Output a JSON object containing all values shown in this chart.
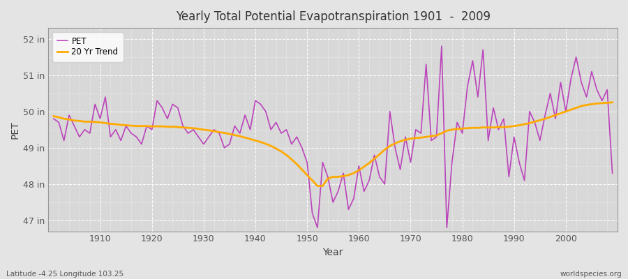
{
  "title": "Yearly Total Potential Evapotranspiration 1901  -  2009",
  "xlabel": "Year",
  "ylabel": "PET",
  "bottom_left_label": "Latitude -4.25 Longitude 103.25",
  "bottom_right_label": "worldspecies.org",
  "pet_color": "#bb44bb",
  "trend_color": "#ffaa00",
  "fig_bg_color": "#e4e4e4",
  "plot_bg_color": "#d8d8d8",
  "grid_color": "#ffffff",
  "ylim": [
    46.7,
    52.3
  ],
  "xlim": [
    1900,
    2010
  ],
  "yticks": [
    47,
    48,
    49,
    50,
    51,
    52
  ],
  "ytick_labels": [
    "47 in",
    "48 in",
    "49 in",
    "50 in",
    "51 in",
    "52 in"
  ],
  "xticks": [
    1910,
    1920,
    1930,
    1940,
    1950,
    1960,
    1970,
    1980,
    1990,
    2000
  ],
  "years": [
    1901,
    1902,
    1903,
    1904,
    1905,
    1906,
    1907,
    1908,
    1909,
    1910,
    1911,
    1912,
    1913,
    1914,
    1915,
    1916,
    1917,
    1918,
    1919,
    1920,
    1921,
    1922,
    1923,
    1924,
    1925,
    1926,
    1927,
    1928,
    1929,
    1930,
    1931,
    1932,
    1933,
    1934,
    1935,
    1936,
    1937,
    1938,
    1939,
    1940,
    1941,
    1942,
    1943,
    1944,
    1945,
    1946,
    1947,
    1948,
    1949,
    1950,
    1951,
    1952,
    1953,
    1954,
    1955,
    1956,
    1957,
    1958,
    1959,
    1960,
    1961,
    1962,
    1963,
    1964,
    1965,
    1966,
    1967,
    1968,
    1969,
    1970,
    1971,
    1972,
    1973,
    1974,
    1975,
    1976,
    1977,
    1978,
    1979,
    1980,
    1981,
    1982,
    1983,
    1984,
    1985,
    1986,
    1987,
    1988,
    1989,
    1990,
    1991,
    1992,
    1993,
    1994,
    1995,
    1996,
    1997,
    1998,
    1999,
    2000,
    2001,
    2002,
    2003,
    2004,
    2005,
    2006,
    2007,
    2008,
    2009
  ],
  "pet_values": [
    49.8,
    49.7,
    49.2,
    49.9,
    49.6,
    49.3,
    49.5,
    49.4,
    50.2,
    49.8,
    50.4,
    49.3,
    49.5,
    49.2,
    49.6,
    49.4,
    49.3,
    49.1,
    49.6,
    49.5,
    50.3,
    50.1,
    49.8,
    50.2,
    50.1,
    49.6,
    49.4,
    49.5,
    49.3,
    49.1,
    49.3,
    49.5,
    49.4,
    49.0,
    49.1,
    49.6,
    49.4,
    49.9,
    49.5,
    50.3,
    50.2,
    50.0,
    49.5,
    49.7,
    49.4,
    49.5,
    49.1,
    49.3,
    49.0,
    48.6,
    47.2,
    46.8,
    48.6,
    48.2,
    47.5,
    47.8,
    48.3,
    47.3,
    47.6,
    48.5,
    47.8,
    48.1,
    48.8,
    48.2,
    48.0,
    50.0,
    49.0,
    48.4,
    49.3,
    48.6,
    49.5,
    49.4,
    51.3,
    49.2,
    49.3,
    51.8,
    46.8,
    48.6,
    49.7,
    49.4,
    50.7,
    51.4,
    50.4,
    51.7,
    49.2,
    50.1,
    49.5,
    49.8,
    48.2,
    49.3,
    48.6,
    48.1,
    50.0,
    49.7,
    49.2,
    49.9,
    50.5,
    49.8,
    50.8,
    50.0,
    50.9,
    51.5,
    50.8,
    50.4,
    51.1,
    50.6,
    50.3,
    50.6,
    48.3
  ],
  "trend_values": [
    49.87,
    49.84,
    49.8,
    49.78,
    49.75,
    49.74,
    49.72,
    49.72,
    49.71,
    49.7,
    49.68,
    49.66,
    49.65,
    49.63,
    49.62,
    49.61,
    49.6,
    49.6,
    49.6,
    49.59,
    49.59,
    49.59,
    49.58,
    49.58,
    49.57,
    49.56,
    49.55,
    49.54,
    49.52,
    49.5,
    49.48,
    49.46,
    49.43,
    49.41,
    49.38,
    49.35,
    49.32,
    49.28,
    49.24,
    49.2,
    49.16,
    49.11,
    49.05,
    48.98,
    48.9,
    48.8,
    48.68,
    48.55,
    48.4,
    48.25,
    48.1,
    47.95,
    47.95,
    48.15,
    48.2,
    48.2,
    48.22,
    48.25,
    48.3,
    48.38,
    48.48,
    48.58,
    48.7,
    48.82,
    48.95,
    49.05,
    49.12,
    49.18,
    49.22,
    49.25,
    49.27,
    49.28,
    49.3,
    49.32,
    49.34,
    49.4,
    49.47,
    49.5,
    49.52,
    49.53,
    49.54,
    49.55,
    49.55,
    49.56,
    49.56,
    49.56,
    49.57,
    49.57,
    49.58,
    49.6,
    49.62,
    49.65,
    49.68,
    49.72,
    49.76,
    49.8,
    49.85,
    49.9,
    49.95,
    50.0,
    50.05,
    50.1,
    50.15,
    50.18,
    50.2,
    50.22,
    50.23,
    50.24,
    50.25
  ]
}
